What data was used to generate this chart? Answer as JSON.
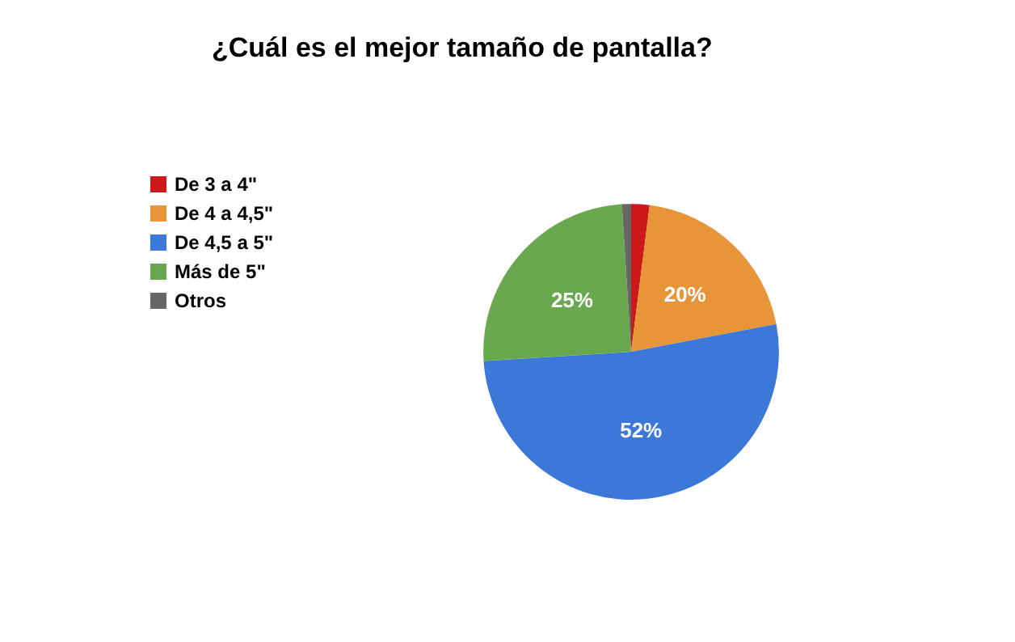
{
  "chart_data": {
    "type": "pie",
    "title": "¿Cuál es el mejor tamaño de pantalla?",
    "categories": [
      "De 3 a 4\"",
      "De 4 a 4,5\"",
      "De 4,5 a 5\"",
      "Más de 5\"",
      "Otros"
    ],
    "values": [
      2,
      20,
      52,
      25,
      1
    ],
    "colors": [
      "#cc1a1a",
      "#e8953a",
      "#3c78d8",
      "#6aa84f",
      "#666666"
    ],
    "value_labels": [
      null,
      "20%",
      "52%",
      "25%",
      null
    ],
    "legend": "left"
  }
}
